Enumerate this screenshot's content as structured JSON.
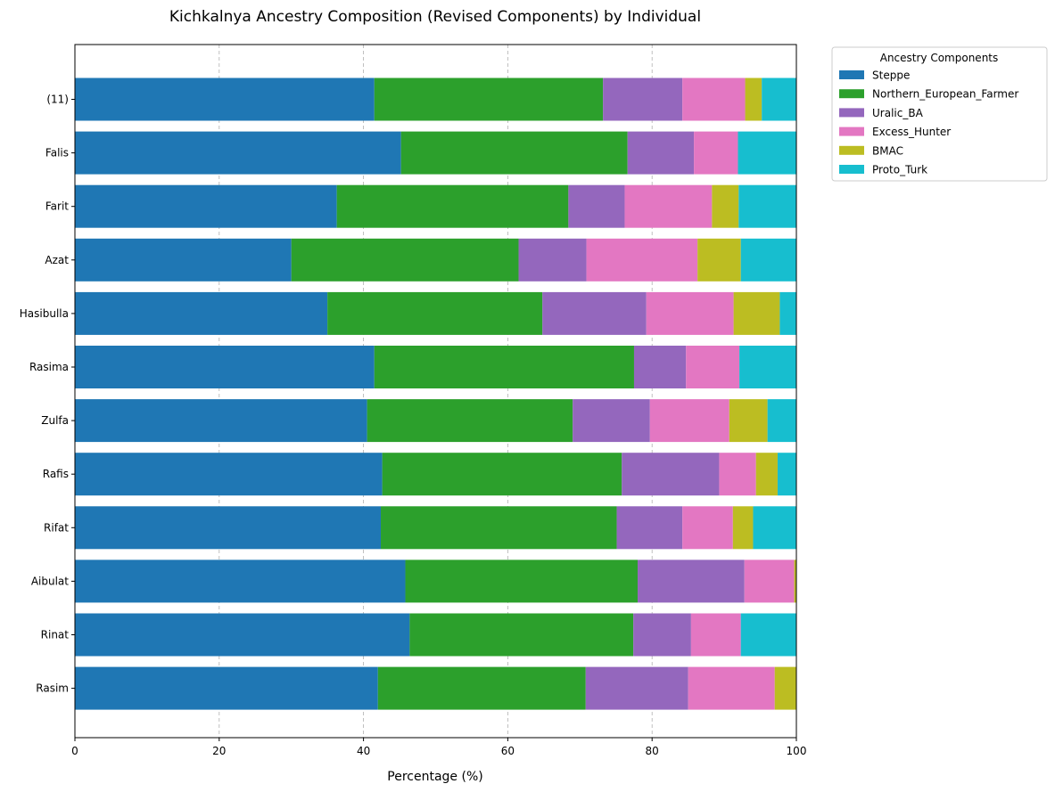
{
  "chart_data": {
    "type": "bar",
    "orientation": "horizontal",
    "stacked": true,
    "title": "Kichkalnya Ancestry Composition (Revised Components) by Individual",
    "xlabel": "Percentage (%)",
    "ylabel": "",
    "xlim": [
      0,
      100
    ],
    "xticks": [
      0,
      20,
      40,
      60,
      80,
      100
    ],
    "grid": "x-dashed",
    "categories": [
      "Rasim",
      "Rinat",
      "Aibulat",
      "Rifat",
      "Rafis",
      "Zulfa",
      "Rasima",
      "Hasibulla",
      "Azat",
      "Farit",
      "Falis",
      "(11)"
    ],
    "legend": {
      "title": "Ancestry Components",
      "placement": "outside-top-right"
    },
    "series": [
      {
        "name": "Steppe",
        "color": "#1f77b4",
        "values": [
          42.0,
          46.4,
          45.8,
          42.4,
          42.6,
          40.5,
          41.5,
          35.0,
          30.0,
          36.3,
          45.2,
          41.5
        ]
      },
      {
        "name": "Northern_European_Farmer",
        "color": "#2ca02c",
        "values": [
          28.8,
          31.0,
          32.2,
          32.7,
          33.2,
          28.5,
          36.0,
          29.8,
          31.5,
          32.1,
          31.4,
          31.7
        ]
      },
      {
        "name": "Uralic_BA",
        "color": "#9467bd",
        "values": [
          14.2,
          8.0,
          14.8,
          9.1,
          13.5,
          10.7,
          7.2,
          14.4,
          9.4,
          7.8,
          9.2,
          11.0
        ]
      },
      {
        "name": "Excess_Hunter",
        "color": "#e377c2",
        "values": [
          12.0,
          6.9,
          6.9,
          7.0,
          5.1,
          11.0,
          7.4,
          12.1,
          15.4,
          12.1,
          6.1,
          8.7
        ]
      },
      {
        "name": "BMAC",
        "color": "#bcbd22",
        "values": [
          3.0,
          0.0,
          0.3,
          2.8,
          3.0,
          5.3,
          0.0,
          6.4,
          6.0,
          3.7,
          0.0,
          2.3
        ]
      },
      {
        "name": "Proto_Turk",
        "color": "#17becf",
        "values": [
          0.0,
          7.7,
          0.0,
          6.0,
          2.6,
          4.0,
          7.9,
          2.3,
          7.7,
          8.0,
          8.1,
          4.8
        ]
      }
    ]
  }
}
